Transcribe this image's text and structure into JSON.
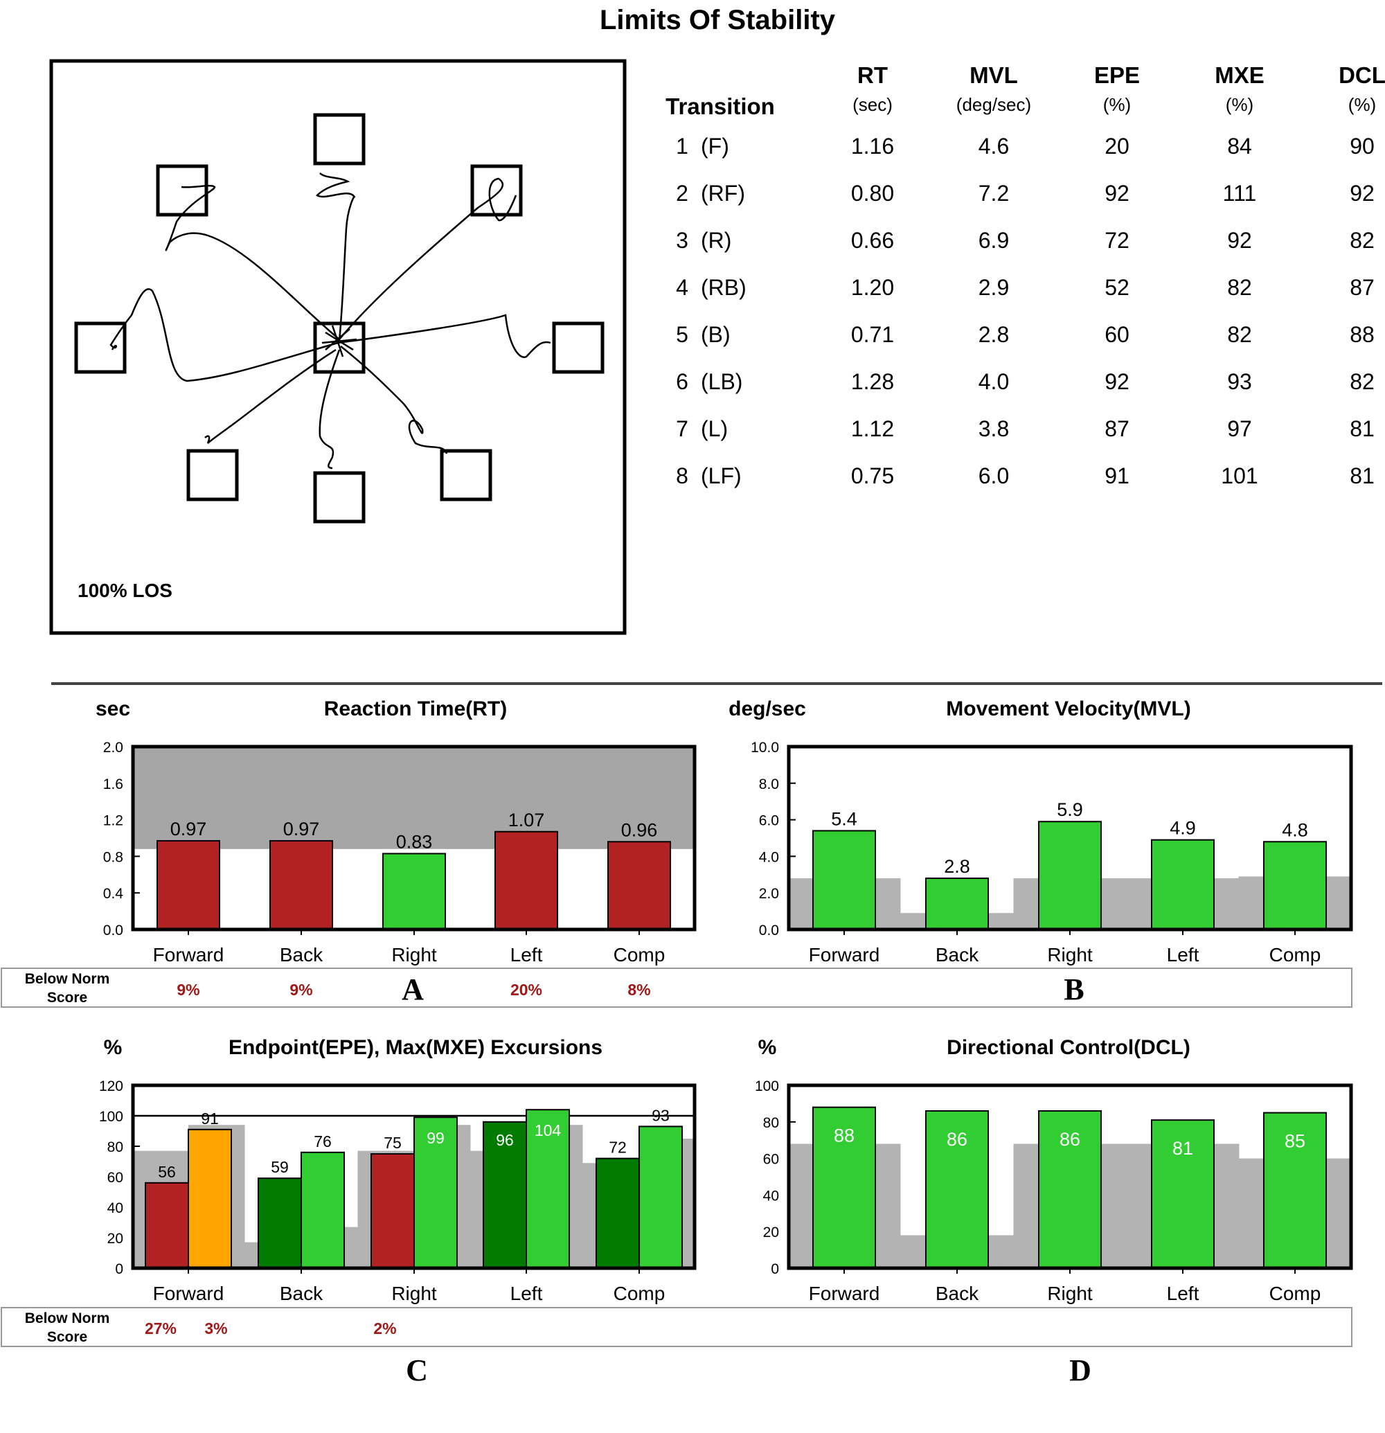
{
  "title": "Limits Of Stability",
  "los_plot": {
    "label": "100% LOS",
    "targets": [
      "F",
      "RF",
      "R",
      "RB",
      "B",
      "LB",
      "L",
      "LF",
      "center"
    ]
  },
  "table": {
    "headers": [
      {
        "name": "Transition",
        "unit": ""
      },
      {
        "name": "RT",
        "unit": "(sec)"
      },
      {
        "name": "MVL",
        "unit": "(deg/sec)"
      },
      {
        "name": "EPE",
        "unit": "(%)"
      },
      {
        "name": "MXE",
        "unit": "(%)"
      },
      {
        "name": "DCL",
        "unit": "(%)"
      }
    ],
    "rows": [
      {
        "n": "1",
        "dir": "(F)",
        "rt": "1.16",
        "mvl": "4.6",
        "epe": "20",
        "mxe": "84",
        "dcl": "90"
      },
      {
        "n": "2",
        "dir": "(RF)",
        "rt": "0.80",
        "mvl": "7.2",
        "epe": "92",
        "mxe": "111",
        "dcl": "92"
      },
      {
        "n": "3",
        "dir": "(R)",
        "rt": "0.66",
        "mvl": "6.9",
        "epe": "72",
        "mxe": "92",
        "dcl": "82"
      },
      {
        "n": "4",
        "dir": "(RB)",
        "rt": "1.20",
        "mvl": "2.9",
        "epe": "52",
        "mxe": "82",
        "dcl": "87"
      },
      {
        "n": "5",
        "dir": "(B)",
        "rt": "0.71",
        "mvl": "2.8",
        "epe": "60",
        "mxe": "82",
        "dcl": "88"
      },
      {
        "n": "6",
        "dir": "(LB)",
        "rt": "1.28",
        "mvl": "4.0",
        "epe": "92",
        "mxe": "93",
        "dcl": "82"
      },
      {
        "n": "7",
        "dir": "(L)",
        "rt": "1.12",
        "mvl": "3.8",
        "epe": "87",
        "mxe": "97",
        "dcl": "81"
      },
      {
        "n": "8",
        "dir": "(LF)",
        "rt": "0.75",
        "mvl": "6.0",
        "epe": "91",
        "mxe": "101",
        "dcl": "81"
      }
    ]
  },
  "below_norm_label": "Below Norm Score",
  "colors": {
    "below_norm": "#b22222",
    "ok": "#32cd32",
    "dark_ok": "#007a00",
    "warn": "#ffa500",
    "norm_band": "#b3b3b3",
    "rt_band": "#a6a6a6",
    "below_text": "#a01818"
  },
  "chart_data": [
    {
      "type": "bar",
      "panel": "A",
      "title": "Reaction Time(RT)",
      "ylabel": "sec",
      "categories": [
        "Forward",
        "Back",
        "Right",
        "Left",
        "Comp"
      ],
      "values": [
        0.97,
        0.97,
        0.83,
        1.07,
        0.96
      ],
      "value_labels": [
        "0.97",
        "0.97",
        "0.83",
        "1.07",
        "0.96"
      ],
      "bar_status": [
        "below",
        "below",
        "ok",
        "below",
        "below"
      ],
      "norm_threshold": 0.88,
      "ylim": [
        0,
        2.0
      ],
      "yticks": [
        "0.0",
        "0.4",
        "0.8",
        "1.2",
        "1.6",
        "2.0"
      ],
      "yticks_values": [
        0,
        0.4,
        0.8,
        1.2,
        1.6,
        2.0
      ],
      "below_norm": [
        "9%",
        "9%",
        "",
        "20%",
        "8%"
      ]
    },
    {
      "type": "bar",
      "panel": "B",
      "title": "Movement Velocity(MVL)",
      "ylabel": "deg/sec",
      "categories": [
        "Forward",
        "Back",
        "Right",
        "Left",
        "Comp"
      ],
      "values": [
        5.4,
        2.8,
        5.9,
        4.9,
        4.8
      ],
      "value_labels": [
        "5.4",
        "2.8",
        "5.9",
        "4.9",
        "4.8"
      ],
      "norm": [
        2.8,
        0.9,
        2.8,
        2.8,
        2.9
      ],
      "ylim": [
        0,
        10.0
      ],
      "yticks": [
        "0.0",
        "2.0",
        "4.0",
        "6.0",
        "8.0",
        "10.0"
      ],
      "yticks_values": [
        0,
        2,
        4,
        6,
        8,
        10
      ]
    },
    {
      "type": "bar",
      "panel": "C",
      "title": "Endpoint(EPE), Max(MXE) Excursions",
      "ylabel": "%",
      "categories": [
        "Forward",
        "Back",
        "Right",
        "Left",
        "Comp"
      ],
      "series": [
        {
          "name": "EPE",
          "values": [
            56,
            59,
            75,
            96,
            72
          ],
          "value_labels": [
            "56",
            "59",
            "75",
            "96",
            "72"
          ],
          "status": [
            "below",
            "dark_ok",
            "below",
            "dark_ok",
            "dark_ok"
          ],
          "norm": [
            77,
            17,
            77,
            77,
            69
          ]
        },
        {
          "name": "MXE",
          "values": [
            91,
            76,
            99,
            104,
            93
          ],
          "value_labels": [
            "91",
            "76",
            "99",
            "104",
            "93"
          ],
          "status": [
            "warn",
            "ok",
            "ok",
            "ok",
            "ok"
          ],
          "norm": [
            94,
            27,
            94,
            94,
            85
          ]
        }
      ],
      "reference_line": 100,
      "ylim": [
        0,
        120
      ],
      "yticks": [
        "0",
        "20",
        "40",
        "60",
        "80",
        "100",
        "120"
      ],
      "yticks_values": [
        0,
        20,
        40,
        60,
        80,
        100,
        120
      ],
      "below_norm": [
        "27%",
        "3%",
        "",
        "",
        "2%",
        "",
        "",
        "",
        "",
        ""
      ]
    },
    {
      "type": "bar",
      "panel": "D",
      "title": "Directional Control(DCL)",
      "ylabel": "%",
      "categories": [
        "Forward",
        "Back",
        "Right",
        "Left",
        "Comp"
      ],
      "values": [
        88,
        86,
        86,
        81,
        85
      ],
      "value_labels": [
        "88",
        "86",
        "86",
        "81",
        "85"
      ],
      "norm": [
        68,
        18,
        68,
        68,
        60
      ],
      "ylim": [
        0,
        100
      ],
      "yticks": [
        "0",
        "20",
        "40",
        "60",
        "80",
        "100"
      ],
      "yticks_values": [
        0,
        20,
        40,
        60,
        80,
        100
      ]
    }
  ]
}
